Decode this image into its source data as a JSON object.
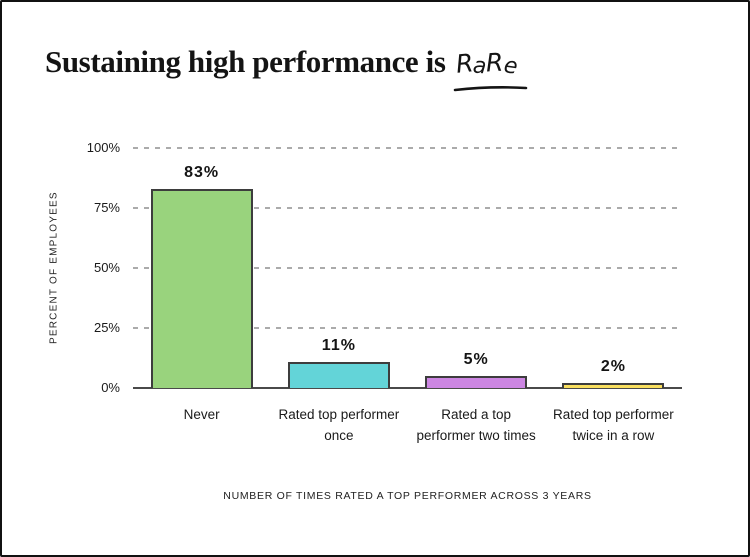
{
  "title": {
    "main": "Sustaining high performance is",
    "accent": "RaRe"
  },
  "chart_data": {
    "type": "bar",
    "title": "Sustaining high performance is RaRe",
    "xlabel": "NUMBER OF TIMES RATED A TOP PERFORMER ACROSS 3 YEARS",
    "ylabel": "PERCENT OF EMPLOYEES",
    "categories": [
      "Never",
      "Rated top performer once",
      "Rated a top performer two times",
      "Rated top performer twice in a row"
    ],
    "values": [
      83,
      11,
      5,
      2
    ],
    "value_labels": [
      "83%",
      "11%",
      "5%",
      "2%"
    ],
    "ylim": [
      0,
      100
    ],
    "yticks": [
      {
        "value": 0,
        "label": "0%"
      },
      {
        "value": 25,
        "label": "25%"
      },
      {
        "value": 50,
        "label": "50%"
      },
      {
        "value": 75,
        "label": "75%"
      },
      {
        "value": 100,
        "label": "100%"
      }
    ],
    "grid": "horizontal-dashed",
    "legend": "none",
    "colors": {
      "bars": [
        "#99D37D",
        "#63D4D8",
        "#CC86E2",
        "#F9DF5E"
      ],
      "bar_border": "#3D3D3D",
      "gridline": "#ABABAB",
      "axis_line": "#4A4A4A",
      "text": "#1A1A1A",
      "background": "#FFFFFF",
      "frame_border": "#111111"
    }
  }
}
